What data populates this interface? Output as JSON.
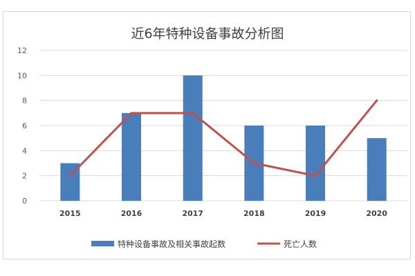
{
  "chart_data": {
    "type": "bar",
    "title": "近6年特种设备事故分析图",
    "categories": [
      "2015",
      "2016",
      "2017",
      "2018",
      "2019",
      "2020"
    ],
    "ylim": [
      0,
      12
    ],
    "yticks": [
      0,
      2,
      4,
      6,
      8,
      10,
      12
    ],
    "grid": true,
    "legend_position": "bottom",
    "series": [
      {
        "name": "特种设备事故及相关事故起数",
        "type": "bar",
        "color": "#4a7ebb",
        "values": [
          3,
          7,
          10,
          6,
          6,
          5
        ]
      },
      {
        "name": "死亡人数",
        "type": "line",
        "color": "#c0504d",
        "values": [
          2,
          7,
          7,
          3,
          2,
          8
        ]
      }
    ]
  }
}
